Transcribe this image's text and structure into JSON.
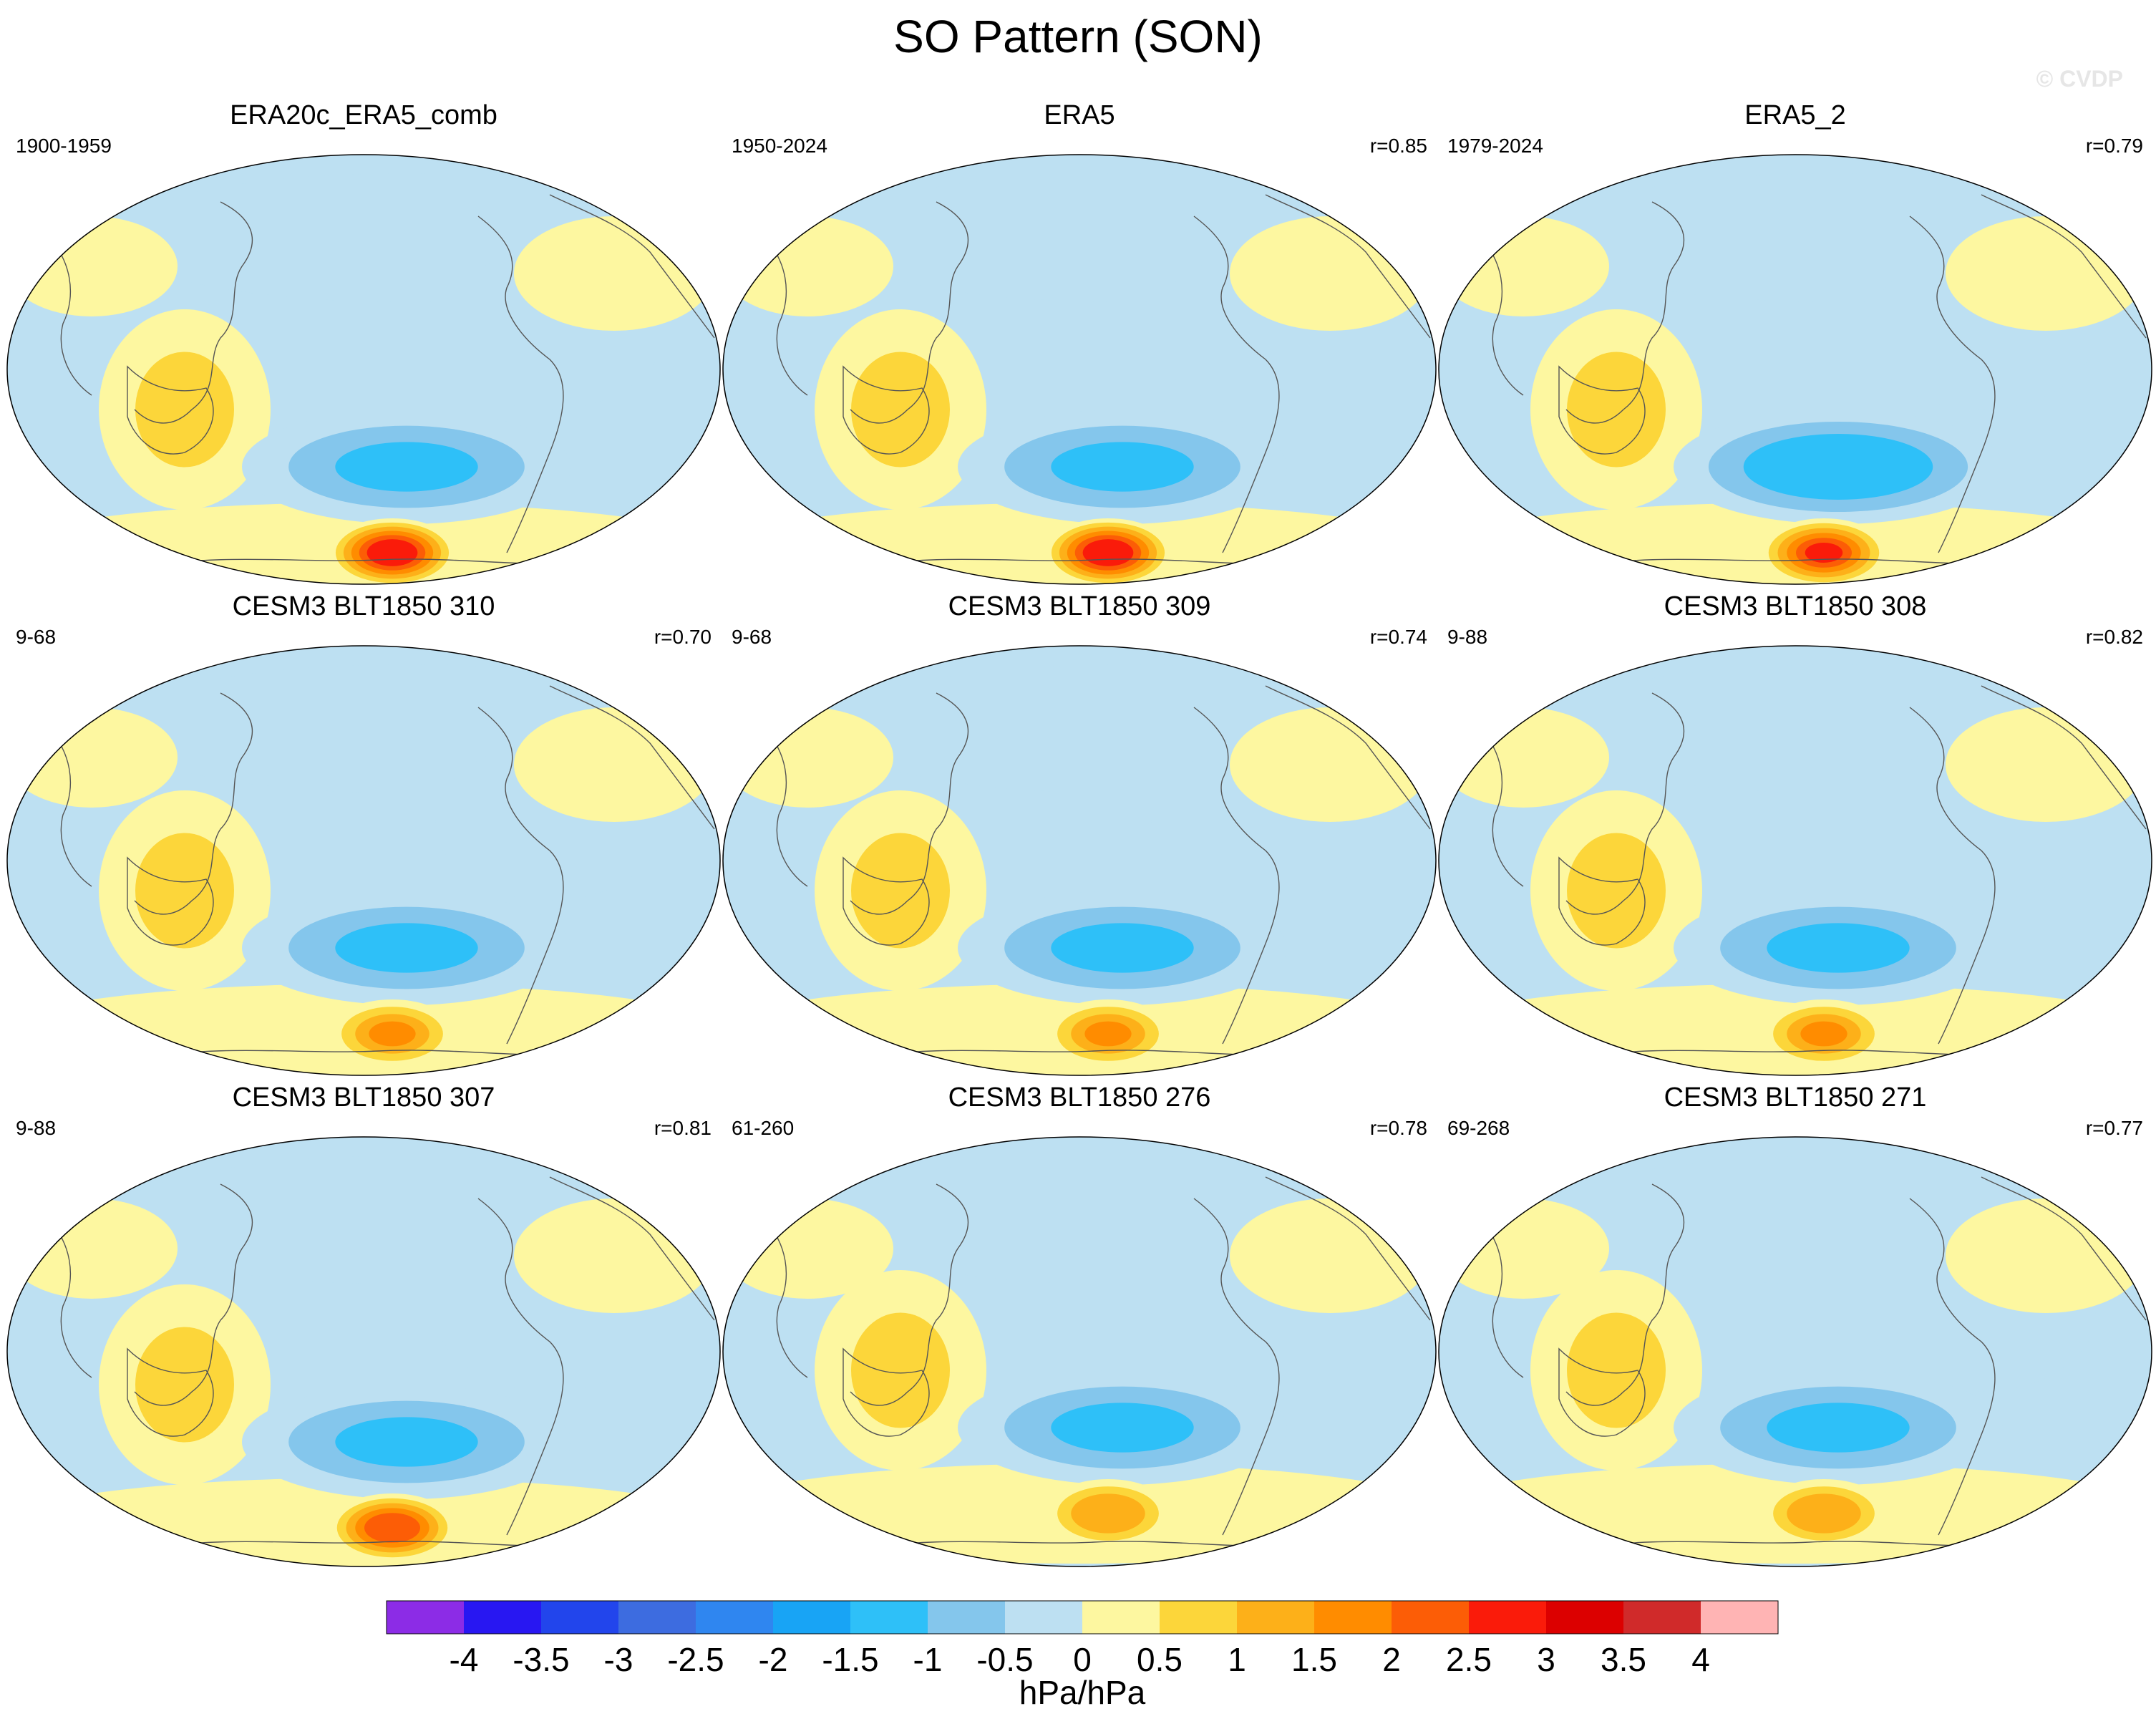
{
  "title": "SO Pattern (SON)",
  "watermark": "© CVDP",
  "colors": {
    "levels": [
      "#8c2ce6",
      "#2817f2",
      "#2245ec",
      "#3d6ce0",
      "#2f86f0",
      "#18a4f5",
      "#2ec0f8",
      "#84c6ec",
      "#bde0f2",
      "#fdf7a0",
      "#fcd63a",
      "#fdb019",
      "#ff8c00",
      "#fc5d06",
      "#fa1b0a",
      "#dc0000",
      "#d02a2a",
      "#ffb4b4"
    ],
    "coast": "#555555"
  },
  "panels": [
    {
      "name": "ERA20c_ERA5_comb",
      "years": "1900-1959",
      "r": ""
    },
    {
      "name": "ERA5",
      "years": "1950-2024",
      "r": "r=0.85"
    },
    {
      "name": "ERA5_2",
      "years": "1979-2024",
      "r": "r=0.79"
    },
    {
      "name": "CESM3 BLT1850 310",
      "years": "9-68",
      "r": "r=0.70"
    },
    {
      "name": "CESM3 BLT1850 309",
      "years": "9-68",
      "r": "r=0.74"
    },
    {
      "name": "CESM3 BLT1850 308",
      "years": "9-88",
      "r": "r=0.82"
    },
    {
      "name": "CESM3 BLT1850 307",
      "years": "9-88",
      "r": "r=0.81"
    },
    {
      "name": "CESM3 BLT1850 276",
      "years": "61-260",
      "r": "r=0.78"
    },
    {
      "name": "CESM3 BLT1850 271",
      "years": "69-268",
      "r": "r=0.77"
    }
  ],
  "chart_data": {
    "type": "heatmap",
    "projection": "Robinson, Pacific-centered",
    "variable": "SLP regression onto SO index",
    "colorbar": {
      "ticks": [
        "-4",
        "-3.5",
        "-3",
        "-2.5",
        "-2",
        "-1.5",
        "-1",
        "-0.5",
        "0",
        "0.5",
        "1",
        "1.5",
        "2",
        "2.5",
        "3",
        "3.5",
        "4"
      ],
      "units": "hPa/hPa",
      "range": [
        -4,
        4
      ],
      "interval": 0.5
    },
    "approx_features": [
      {
        "feature": "South Pacific high-latitude positive maximum",
        "value": 3.0,
        "lon": -110,
        "lat": -65
      },
      {
        "feature": "South Pacific mid-latitude negative minimum",
        "value": -1.5,
        "lon": -120,
        "lat": -45
      },
      {
        "feature": "Australian / Maritime Continent positive",
        "value": 1.0,
        "lon": 130,
        "lat": -20
      },
      {
        "feature": "North Pacific negative",
        "value": -1.0,
        "lon": -160,
        "lat": 50
      }
    ],
    "panels_peak": [
      {
        "name": "ERA20c_ERA5_comb",
        "pos_max": 3.2,
        "neg_min": -1.6
      },
      {
        "name": "ERA5",
        "pos_max": 3.2,
        "neg_min": -1.6
      },
      {
        "name": "ERA5_2",
        "pos_max": 3.0,
        "neg_min": -1.8
      },
      {
        "name": "CESM3 BLT1850 310",
        "pos_max": 2.0,
        "neg_min": -1.6
      },
      {
        "name": "CESM3 BLT1850 309",
        "pos_max": 1.8,
        "neg_min": -1.6
      },
      {
        "name": "CESM3 BLT1850 308",
        "pos_max": 1.8,
        "neg_min": -1.6
      },
      {
        "name": "CESM3 BLT1850 307",
        "pos_max": 2.6,
        "neg_min": -1.6
      },
      {
        "name": "CESM3 BLT1850 276",
        "pos_max": 1.6,
        "neg_min": -1.6
      },
      {
        "name": "CESM3 BLT1850 271",
        "pos_max": 1.6,
        "neg_min": -1.6
      }
    ]
  }
}
